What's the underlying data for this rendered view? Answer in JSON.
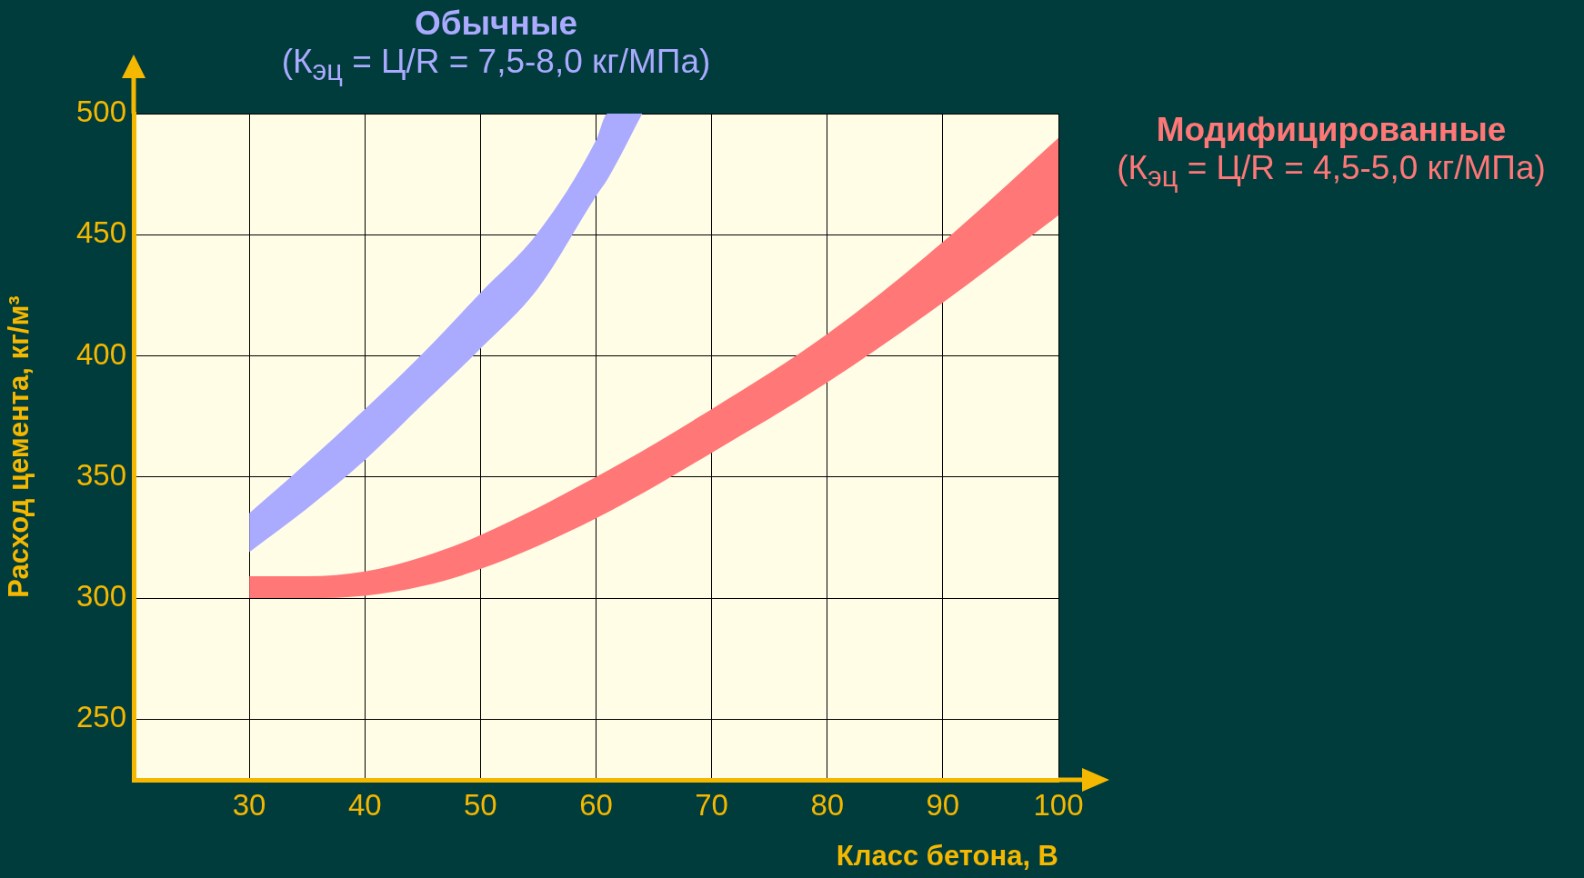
{
  "chart_data": {
    "type": "line",
    "xlabel": "Класс бетона, В",
    "ylabel": "Расход цемента, кг/м³",
    "xlim": [
      20,
      100
    ],
    "xticks": [
      30,
      40,
      50,
      60,
      70,
      80,
      90,
      100
    ],
    "ylim": [
      225,
      500
    ],
    "yticks": [
      250,
      300,
      350,
      400,
      450,
      500
    ],
    "grid": true,
    "series": [
      {
        "name": "Обычные",
        "color": "#aaaaff",
        "x": [
          30,
          35,
          40,
          45,
          50,
          55,
          60,
          61,
          64
        ],
        "values": [
          null,
          null,
          null,
          null,
          null,
          null,
          null,
          null,
          null
        ],
        "lower": [
          319,
          337,
          357,
          380,
          403,
          428,
          466,
          473,
          500
        ],
        "upper": [
          335,
          356,
          378,
          401,
          426,
          451,
          489,
          500,
          500
        ]
      },
      {
        "name": "Модифицированные",
        "color": "#ff7777",
        "x": [
          30,
          35,
          40,
          45,
          50,
          60,
          70,
          80,
          90,
          100
        ],
        "values": [
          null,
          null,
          null,
          null,
          null,
          null,
          null,
          null,
          null,
          null
        ],
        "lower": [
          300,
          300,
          301,
          305,
          312,
          333,
          360,
          389,
          422,
          458
        ],
        "upper": [
          309,
          309,
          311,
          317,
          326,
          350,
          378,
          409,
          447,
          490
        ]
      }
    ],
    "annotations": [
      "(К$_{эц}$ = Ц/R = 7,5-8,0 кг/МПа)",
      "(К$_{эц}$ = Ц/R = 4,5-5,0 кг/МПа)"
    ]
  }
}
